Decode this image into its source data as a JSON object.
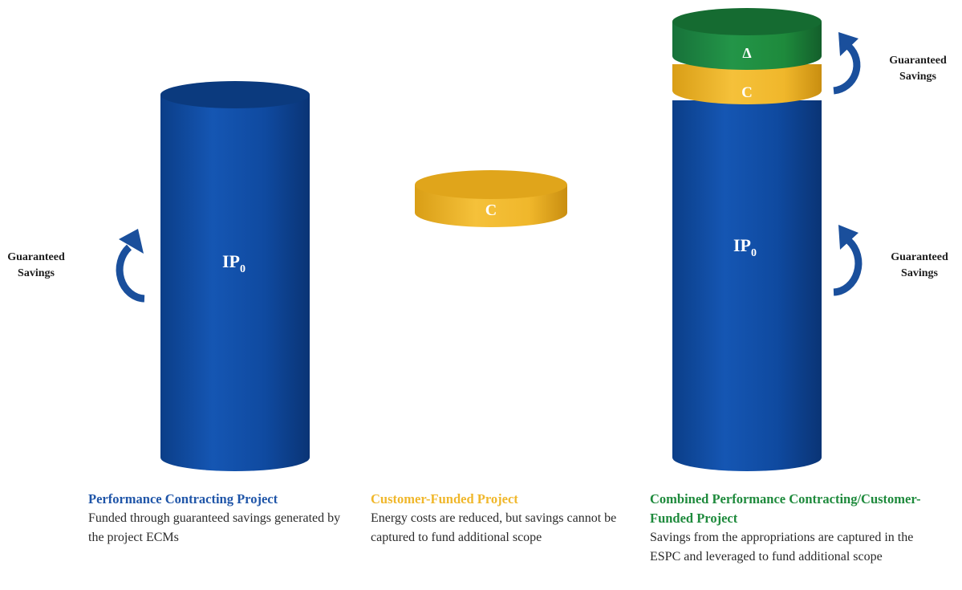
{
  "colors": {
    "blue": "#0e4aa0",
    "blue_dark": "#0a326f",
    "gold": "#f0b72b",
    "gold_dark": "#cf9611",
    "green": "#1e8a3c",
    "green_dark": "#136428",
    "title_blue": "#1f55a8",
    "title_gold": "#f0b72b",
    "title_green": "#1e8a3c"
  },
  "cylinders": {
    "left": {
      "label_main": "IP",
      "label_sub": "0"
    },
    "middle": {
      "label": "C"
    },
    "right": {
      "label_main": "IP",
      "label_sub": "0",
      "band_gold": "C",
      "band_green": "Δ"
    }
  },
  "arrows": {
    "left_lower": "Guaranteed Savings",
    "right_upper": "Guaranteed Savings",
    "right_lower": "Guaranteed Savings",
    "label_line1": "Guaranteed",
    "label_line2": "Savings"
  },
  "captions": {
    "left": {
      "title": "Performance Contracting Project",
      "desc": "Funded through guaranteed savings generated by the project ECMs"
    },
    "middle": {
      "title": "Customer-Funded Project",
      "desc": "Energy costs are reduced, but savings cannot be captured to fund additional scope"
    },
    "right": {
      "title": "Combined Performance Contracting/Customer-Funded Project",
      "desc": "Savings from the appropriations are captured in the ESPC and leveraged to fund additional scope"
    }
  }
}
